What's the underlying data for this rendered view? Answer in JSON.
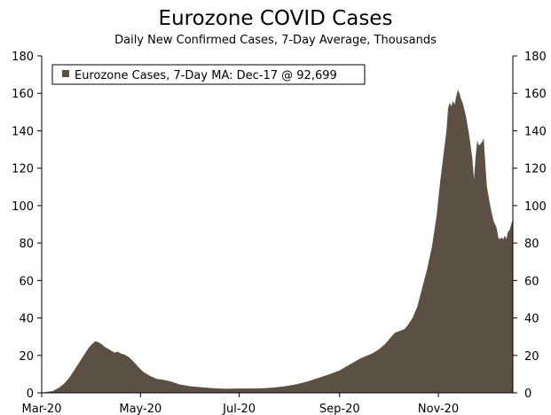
{
  "chart_data": {
    "type": "area",
    "title": "Eurozone COVID Cases",
    "subtitle": "Daily New Confirmed Cases, 7-Day Average, Thousands",
    "legend": {
      "label": "Eurozone Cases, 7-Day MA: Dec-17 @ 92,699",
      "placement": "top-left"
    },
    "colors": {
      "area": "#5c5045"
    },
    "x_axis": {
      "ticks": [
        {
          "date": "2020-03-01",
          "label": "Mar-20"
        },
        {
          "date": "2020-05-01",
          "label": "May-20"
        },
        {
          "date": "2020-07-01",
          "label": "Jul-20"
        },
        {
          "date": "2020-09-01",
          "label": "Sep-20"
        },
        {
          "date": "2020-11-01",
          "label": "Nov-20"
        }
      ],
      "range": [
        "2020-03-01",
        "2020-12-17"
      ]
    },
    "y_axis": {
      "ticks": [
        0,
        20,
        40,
        60,
        80,
        100,
        120,
        140,
        160,
        180
      ],
      "ylim": [
        0,
        180
      ],
      "dual": true
    },
    "grid": false,
    "series": [
      {
        "name": "Eurozone Cases, 7-Day MA",
        "points": [
          [
            "2020-03-01",
            0.1
          ],
          [
            "2020-03-08",
            1
          ],
          [
            "2020-03-12",
            3
          ],
          [
            "2020-03-15",
            5
          ],
          [
            "2020-03-18",
            8
          ],
          [
            "2020-03-21",
            12
          ],
          [
            "2020-03-24",
            16
          ],
          [
            "2020-03-27",
            20
          ],
          [
            "2020-03-30",
            24
          ],
          [
            "2020-04-01",
            26
          ],
          [
            "2020-04-03",
            27.5
          ],
          [
            "2020-04-05",
            27
          ],
          [
            "2020-04-07",
            26
          ],
          [
            "2020-04-09",
            24.5
          ],
          [
            "2020-04-11",
            23.5
          ],
          [
            "2020-04-13",
            22.5
          ],
          [
            "2020-04-15",
            21.5
          ],
          [
            "2020-04-17",
            22
          ],
          [
            "2020-04-19",
            21
          ],
          [
            "2020-04-21",
            20.5
          ],
          [
            "2020-04-24",
            19
          ],
          [
            "2020-04-27",
            16.5
          ],
          [
            "2020-04-30",
            13.5
          ],
          [
            "2020-05-03",
            11
          ],
          [
            "2020-05-07",
            9
          ],
          [
            "2020-05-11",
            7.5
          ],
          [
            "2020-05-15",
            7
          ],
          [
            "2020-05-20",
            6
          ],
          [
            "2020-05-25",
            4.5
          ],
          [
            "2020-06-01",
            3.5
          ],
          [
            "2020-06-08",
            3
          ],
          [
            "2020-06-15",
            2.5
          ],
          [
            "2020-06-22",
            2.2
          ],
          [
            "2020-07-01",
            2.3
          ],
          [
            "2020-07-08",
            2.3
          ],
          [
            "2020-07-15",
            2.4
          ],
          [
            "2020-07-22",
            2.8
          ],
          [
            "2020-07-29",
            3.5
          ],
          [
            "2020-08-05",
            4.5
          ],
          [
            "2020-08-12",
            6
          ],
          [
            "2020-08-19",
            8
          ],
          [
            "2020-08-26",
            10
          ],
          [
            "2020-09-01",
            12
          ],
          [
            "2020-09-05",
            14
          ],
          [
            "2020-09-09",
            16
          ],
          [
            "2020-09-13",
            18
          ],
          [
            "2020-09-17",
            19.5
          ],
          [
            "2020-09-21",
            21
          ],
          [
            "2020-09-25",
            23
          ],
          [
            "2020-09-29",
            26
          ],
          [
            "2020-10-02",
            29
          ],
          [
            "2020-10-05",
            32
          ],
          [
            "2020-10-08",
            33
          ],
          [
            "2020-10-11",
            34
          ],
          [
            "2020-10-13",
            36
          ],
          [
            "2020-10-16",
            40
          ],
          [
            "2020-10-19",
            46
          ],
          [
            "2020-10-22",
            56
          ],
          [
            "2020-10-25",
            66
          ],
          [
            "2020-10-28",
            78
          ],
          [
            "2020-10-31",
            95
          ],
          [
            "2020-11-02",
            112
          ],
          [
            "2020-11-04",
            126
          ],
          [
            "2020-11-06",
            140
          ],
          [
            "2020-11-07",
            152
          ],
          [
            "2020-11-08",
            155
          ],
          [
            "2020-11-09",
            153
          ],
          [
            "2020-11-10",
            156
          ],
          [
            "2020-11-11",
            154
          ],
          [
            "2020-11-12",
            158
          ],
          [
            "2020-11-13",
            162
          ],
          [
            "2020-11-14",
            160
          ],
          [
            "2020-11-15",
            157
          ],
          [
            "2020-11-16",
            155
          ],
          [
            "2020-11-18",
            148
          ],
          [
            "2020-11-20",
            138
          ],
          [
            "2020-11-22",
            125
          ],
          [
            "2020-11-23",
            114
          ],
          [
            "2020-11-24",
            126
          ],
          [
            "2020-11-25",
            135
          ],
          [
            "2020-11-26",
            132
          ],
          [
            "2020-11-28",
            134
          ],
          [
            "2020-11-29",
            136
          ],
          [
            "2020-11-30",
            122
          ],
          [
            "2020-12-01",
            110
          ],
          [
            "2020-12-03",
            100
          ],
          [
            "2020-12-05",
            92
          ],
          [
            "2020-12-07",
            88
          ],
          [
            "2020-12-08",
            83
          ],
          [
            "2020-12-09",
            82
          ],
          [
            "2020-12-10",
            83
          ],
          [
            "2020-12-11",
            82
          ],
          [
            "2020-12-12",
            84
          ],
          [
            "2020-12-13",
            82
          ],
          [
            "2020-12-14",
            86
          ],
          [
            "2020-12-15",
            87
          ],
          [
            "2020-12-16",
            90
          ],
          [
            "2020-12-17",
            92.699
          ]
        ]
      }
    ]
  }
}
